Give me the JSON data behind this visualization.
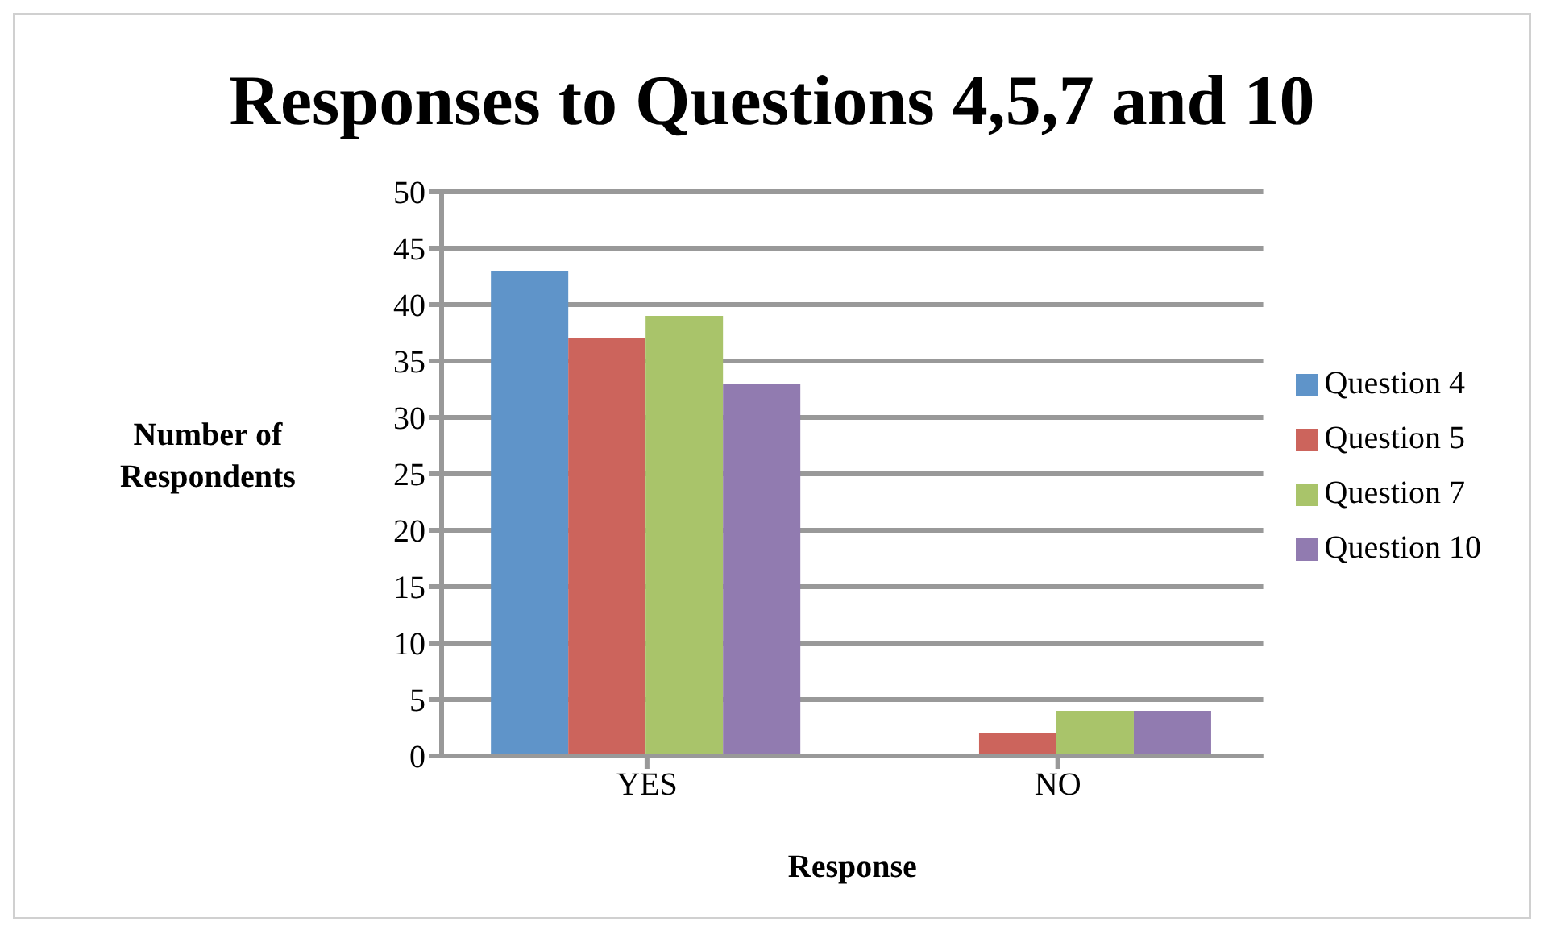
{
  "chart_data": {
    "type": "bar",
    "title": "Responses to Questions 4,5,7 and 10",
    "xlabel": "Response",
    "ylabel": "Number of Respondents",
    "categories": [
      "YES",
      "NO"
    ],
    "series": [
      {
        "name": "Question 4",
        "color": "#5f94c9",
        "values": [
          43,
          0
        ]
      },
      {
        "name": "Question 5",
        "color": "#cc645c",
        "values": [
          37,
          2
        ]
      },
      {
        "name": "Question 7",
        "color": "#a9c46a",
        "values": [
          39,
          4
        ]
      },
      {
        "name": "Question 10",
        "color": "#917bb0",
        "values": [
          33,
          4
        ]
      }
    ],
    "ylim": [
      0,
      50
    ],
    "yticks": [
      0,
      5,
      10,
      15,
      20,
      25,
      30,
      35,
      40,
      45,
      50
    ],
    "grid": "y",
    "legend": "right"
  }
}
